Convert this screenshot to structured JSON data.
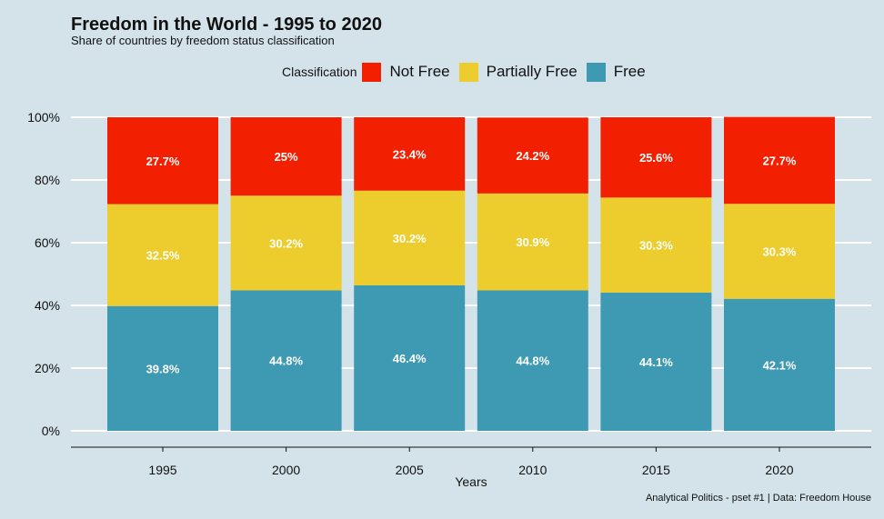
{
  "chart_data": {
    "type": "bar",
    "stacked": true,
    "title": "Freedom in the World - 1995 to 2020",
    "subtitle": "Share of countries by freedom status classification",
    "xlabel": "Years",
    "ylabel": "",
    "ylim": [
      0,
      100
    ],
    "yticks": [
      "0%",
      "20%",
      "40%",
      "60%",
      "80%",
      "100%"
    ],
    "grid": true,
    "legend_position": "top",
    "legend_title": "Classification",
    "categories": [
      "1995",
      "2000",
      "2005",
      "2010",
      "2015",
      "2020"
    ],
    "series": [
      {
        "name": "Free",
        "color": "#3e99b2",
        "values": [
          39.8,
          44.8,
          46.4,
          44.8,
          44.1,
          42.1
        ],
        "labels": [
          "39.8%",
          "44.8%",
          "46.4%",
          "44.8%",
          "44.1%",
          "42.1%"
        ]
      },
      {
        "name": "Partially Free",
        "color": "#eccd2d",
        "values": [
          32.5,
          30.2,
          30.2,
          30.9,
          30.3,
          30.3
        ],
        "labels": [
          "32.5%",
          "30.2%",
          "30.2%",
          "30.9%",
          "30.3%",
          "30.3%"
        ]
      },
      {
        "name": "Not Free",
        "color": "#f21f00",
        "values": [
          27.7,
          25,
          23.4,
          24.2,
          25.6,
          27.7
        ],
        "labels": [
          "27.7%",
          "25%",
          "23.4%",
          "24.2%",
          "25.6%",
          "27.7%"
        ]
      }
    ],
    "legend_order": [
      "Not Free",
      "Partially Free",
      "Free"
    ],
    "caption": "Analytical Politics - pset #1  |  Data: Freedom House"
  }
}
